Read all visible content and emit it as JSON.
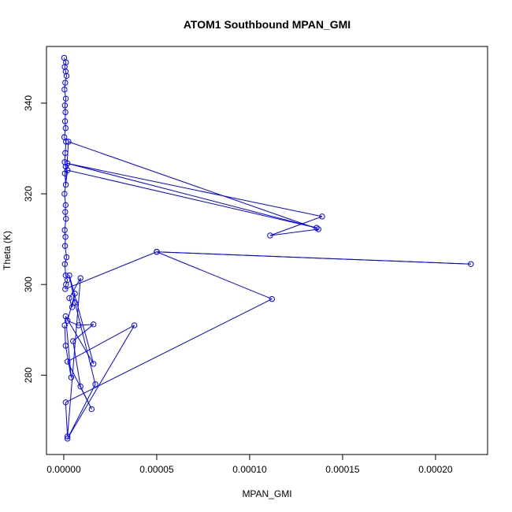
{
  "chart_data": {
    "type": "line",
    "title": "ATOM1 Southbound MPAN_GMI",
    "xlabel": "MPAN_GMI",
    "ylabel": "Theta (K)",
    "xlim": [
      -9.3e-06,
      0.000228
    ],
    "ylim": [
      262.5,
      352.5
    ],
    "x_ticks": [
      0,
      5e-05,
      0.0001,
      0.00015,
      0.0002
    ],
    "x_tick_labels": [
      "0.00000",
      "0.00005",
      "0.00010",
      "0.00015",
      "0.00020"
    ],
    "y_ticks": [
      280,
      300,
      320,
      340
    ],
    "y_tick_labels": [
      "280",
      "300",
      "320",
      "340"
    ],
    "grid": false,
    "series_color": "#0000ff",
    "marker": "open-circle",
    "series": [
      {
        "x": [
          2e-07,
          1.2e-06,
          5e-07,
          1e-06,
          1.5e-06,
          8e-07,
          4e-07,
          1.1e-06,
          6e-07,
          9e-07,
          7e-07,
          1e-06,
          3e-07,
          1.2e-06,
          8e-07,
          5e-07,
          1e-06,
          6e-07,
          1.1e-06,
          2.5e-06,
          0.000137,
          0.000111,
          0.000139,
          2e-06,
          0.000136,
          2e-06,
          4e-07,
          1e-06,
          8e-07,
          1.2e-06,
          5e-07,
          9e-07,
          7e-07,
          1.5e-06,
          6e-07,
          1e-06,
          2e-06,
          1.2e-06,
          8e-07,
          5e-05,
          0.000219,
          5e-05,
          0.000112,
          1e-06,
          2e-06,
          9e-06,
          3e-06,
          4.5e-06,
          6e-06,
          2e-06,
          8e-06,
          1.6e-05,
          5e-06,
          9e-06,
          1.5e-05,
          2e-06,
          3.8e-05,
          2e-06,
          1.7e-05,
          6e-06,
          3e-06,
          1.6e-05,
          1e-06,
          4e-06,
          1e-06,
          5e-07
        ],
        "y": [
          350.0,
          349.0,
          348.0,
          347.0,
          346.0,
          344.5,
          343.0,
          341.0,
          339.5,
          338.0,
          336.0,
          334.5,
          332.5,
          331.5,
          329.0,
          327.0,
          326.0,
          324.5,
          322.0,
          331.5,
          312.2,
          310.8,
          315.0,
          326.7,
          312.5,
          325.2,
          320.0,
          317.5,
          316.0,
          314.5,
          312.0,
          310.5,
          308.5,
          306.0,
          304.5,
          302.0,
          301.0,
          300.0,
          299.0,
          307.2,
          304.5,
          307.2,
          296.8,
          274.0,
          266.5,
          301.4,
          297.0,
          295.0,
          298.0,
          292.0,
          291.0,
          291.2,
          287.5,
          277.5,
          272.5,
          283.0,
          291.0,
          266.0,
          278.0,
          296.0,
          302.0,
          282.5,
          293.0,
          279.5,
          286.5,
          291.0
        ]
      }
    ]
  }
}
